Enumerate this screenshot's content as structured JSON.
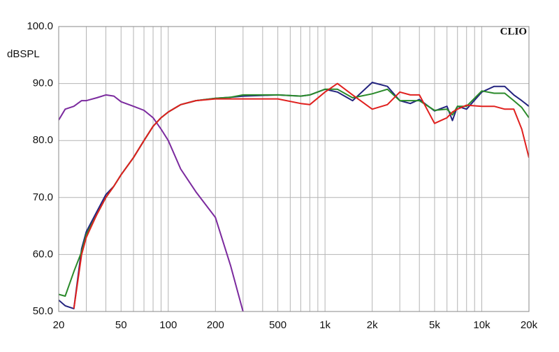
{
  "chart_data": {
    "type": "line",
    "y_label": "dBSPL",
    "brand": "CLIO",
    "xscale": "log",
    "grid": true,
    "xlim": [
      20,
      20000
    ],
    "ylim": [
      50,
      100
    ],
    "xticks": [
      20,
      50,
      100,
      200,
      500,
      {
        "value": 1000,
        "label": "1k"
      },
      {
        "value": 2000,
        "label": "2k"
      },
      {
        "value": 5000,
        "label": "5k"
      },
      {
        "value": 10000,
        "label": "10k"
      },
      {
        "value": 20000,
        "label": "20k"
      }
    ],
    "x_minor_ticks": [
      30,
      40,
      60,
      70,
      80,
      90,
      300,
      400,
      600,
      700,
      800,
      900,
      3000,
      4000,
      6000,
      7000,
      8000,
      9000
    ],
    "yticks": [
      {
        "value": 50,
        "label": "50.0"
      },
      {
        "value": 60,
        "label": "60.0"
      },
      {
        "value": 70,
        "label": "70.0"
      },
      {
        "value": 80,
        "label": "80.0"
      },
      {
        "value": 90,
        "label": "90.0"
      },
      {
        "value": 100,
        "label": "100.0"
      }
    ],
    "x": [
      20,
      22,
      25,
      28,
      30,
      35,
      40,
      45,
      50,
      60,
      70,
      80,
      90,
      100,
      120,
      150,
      200,
      250,
      300,
      500,
      700,
      800,
      1000,
      1200,
      1500,
      2000,
      2500,
      3000,
      3500,
      4000,
      5000,
      6000,
      6500,
      7000,
      8000,
      10000,
      12000,
      14000,
      16000,
      18000,
      20000
    ],
    "series": [
      {
        "color": "#7b2a9e",
        "values": [
          83.6,
          85.5,
          86,
          87,
          87,
          87.5,
          88,
          87.8,
          86.8,
          86,
          85.3,
          84,
          82,
          80,
          75,
          71,
          66.5,
          58,
          50,
          null,
          null,
          null,
          null,
          null,
          null,
          null,
          null,
          null,
          null,
          null,
          null,
          null,
          null,
          null,
          null,
          null,
          null,
          null,
          null,
          null,
          null
        ]
      },
      {
        "color": "#23237e",
        "values": [
          52,
          51,
          50.5,
          61,
          64,
          67.5,
          70.5,
          72,
          74,
          77,
          80,
          82.5,
          84,
          85,
          86.3,
          87,
          87.4,
          87.6,
          87.8,
          88,
          87.8,
          88,
          89,
          88.5,
          87,
          90.2,
          89.5,
          87,
          86.5,
          87.2,
          85.2,
          86,
          83.5,
          86,
          85.5,
          88.5,
          89.5,
          89.5,
          88,
          87,
          86
        ]
      },
      {
        "color": "#2a8a2a",
        "values": [
          53,
          52.7,
          57,
          60.5,
          63.5,
          67,
          70,
          72,
          74,
          77,
          80,
          82.5,
          84,
          85,
          86.3,
          87,
          87.4,
          87.6,
          88,
          88,
          87.8,
          88,
          89,
          89,
          87.5,
          88.2,
          89,
          87,
          87,
          87,
          85.3,
          85.5,
          84.5,
          86,
          86,
          88.7,
          88.3,
          88.3,
          87,
          85.8,
          84
        ]
      },
      {
        "color": "#e0201e",
        "values": [
          null,
          null,
          50.5,
          60,
          63,
          67,
          70,
          72,
          74,
          77,
          80,
          82.5,
          84,
          85,
          86.3,
          87,
          87.3,
          87.3,
          87.3,
          87.3,
          86.5,
          86.3,
          88.5,
          90,
          88,
          85.5,
          86.3,
          88.5,
          88,
          88,
          83,
          84,
          85,
          85.5,
          86.2,
          86,
          86,
          85.5,
          85.5,
          82,
          77
        ]
      }
    ]
  }
}
